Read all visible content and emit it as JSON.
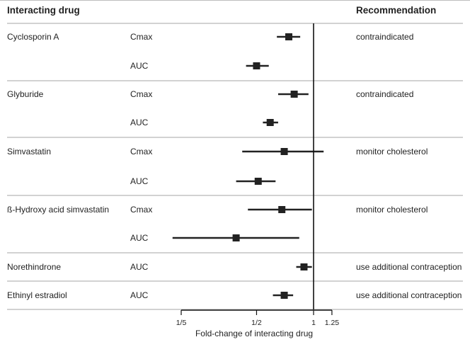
{
  "chart_data": {
    "type": "forest",
    "headers": {
      "drug": "Interacting drug",
      "recommendation": "Recommendation"
    },
    "xlabel": "Fold-change of interacting drug",
    "x_scale": "log",
    "xlim": [
      0.2,
      1.25
    ],
    "reference_line": 1,
    "ticks": [
      {
        "value": 0.2,
        "label": "1/5"
      },
      {
        "value": 0.5,
        "label": "1/2"
      },
      {
        "value": 1,
        "label": "1"
      },
      {
        "value": 1.25,
        "label": "1.25"
      }
    ],
    "groups": [
      {
        "drug": "Cyclosporin A",
        "recommendation": "contraindicated",
        "rows": [
          {
            "param": "Cmax",
            "estimate": 0.74,
            "lower": 0.64,
            "upper": 0.85
          },
          {
            "param": "AUC",
            "estimate": 0.5,
            "lower": 0.44,
            "upper": 0.58
          }
        ]
      },
      {
        "drug": "Glyburide",
        "recommendation": "contraindicated",
        "rows": [
          {
            "param": "Cmax",
            "estimate": 0.79,
            "lower": 0.65,
            "upper": 0.94
          },
          {
            "param": "AUC",
            "estimate": 0.59,
            "lower": 0.54,
            "upper": 0.65
          }
        ]
      },
      {
        "drug": "Simvastatin",
        "recommendation": "monitor cholesterol",
        "rows": [
          {
            "param": "Cmax",
            "estimate": 0.7,
            "lower": 0.42,
            "upper": 1.13
          },
          {
            "param": "AUC",
            "estimate": 0.51,
            "lower": 0.39,
            "upper": 0.63
          }
        ]
      },
      {
        "drug": "ß-Hydroxy acid simvastatin",
        "recommendation": "monitor cholesterol",
        "rows": [
          {
            "param": "Cmax",
            "estimate": 0.68,
            "lower": 0.45,
            "upper": 0.98
          },
          {
            "param": "AUC",
            "estimate": 0.39,
            "lower": 0.18,
            "upper": 0.84
          }
        ]
      },
      {
        "drug": "Norethindrone",
        "recommendation": "use additional contraception",
        "rows": [
          {
            "param": "AUC",
            "estimate": 0.89,
            "lower": 0.81,
            "upper": 0.98
          }
        ]
      },
      {
        "drug": "Ethinyl estradiol",
        "recommendation": "use additional contraception",
        "rows": [
          {
            "param": "AUC",
            "estimate": 0.7,
            "lower": 0.61,
            "upper": 0.78
          }
        ]
      }
    ]
  }
}
